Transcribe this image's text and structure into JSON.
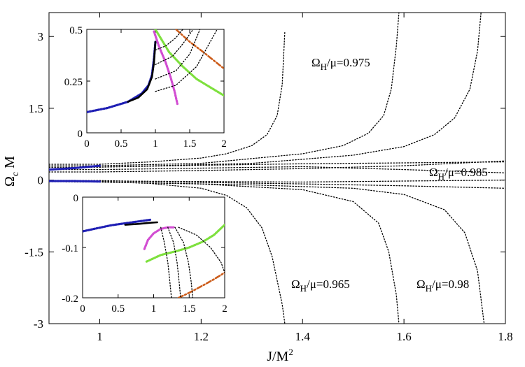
{
  "chart_data": [
    {
      "type": "line",
      "panel": "main",
      "xlabel": "J/M²",
      "ylabel": "Ωc M",
      "xlim": [
        0.9,
        1.8
      ],
      "ylim": [
        -3,
        3.5
      ],
      "xticks": [
        1,
        1.2,
        1.4,
        1.6,
        1.8
      ],
      "yticks": [
        3,
        1.5,
        0,
        -1.5,
        -3
      ],
      "ytick_labels": [
        "3",
        "1.5",
        "0",
        "-1.5",
        "-3"
      ],
      "grid": false,
      "annotations": [
        "ΩH/μ=0.975",
        "ΩH/μ=0.985",
        "ΩH/μ=0.965",
        "ΩH/μ=0.98"
      ],
      "series": [
        {
          "style": "dotted",
          "color": "#000000",
          "x": [
            0.9,
            1.0,
            1.1,
            1.2,
            1.25,
            1.3,
            1.33,
            1.35,
            1.36,
            1.365
          ],
          "y": [
            0.33,
            0.33,
            0.38,
            0.46,
            0.55,
            0.72,
            0.95,
            1.35,
            2.0,
            3.1
          ]
        },
        {
          "style": "dotted",
          "color": "#000000",
          "x": [
            0.9,
            1.0,
            1.2,
            1.4,
            1.48,
            1.53,
            1.56,
            1.575,
            1.585,
            1.59
          ],
          "y": [
            0.3,
            0.3,
            0.35,
            0.55,
            0.72,
            0.98,
            1.35,
            1.9,
            2.8,
            3.5
          ]
        },
        {
          "style": "dotted",
          "color": "#000000",
          "x": [
            0.9,
            1.0,
            1.3,
            1.5,
            1.6,
            1.66,
            1.7,
            1.73,
            1.745,
            1.752
          ],
          "y": [
            0.27,
            0.27,
            0.35,
            0.52,
            0.7,
            0.95,
            1.3,
            1.9,
            2.7,
            3.5
          ]
        },
        {
          "style": "dotted",
          "color": "#000000",
          "x": [
            0.9,
            1.0,
            1.2,
            1.4,
            1.6,
            1.8
          ],
          "y": [
            0.17,
            0.17,
            0.2,
            0.24,
            0.3,
            0.4
          ]
        },
        {
          "style": "dotted",
          "color": "#000000",
          "x": [
            0.9,
            1.0,
            1.2,
            1.4,
            1.6,
            1.8
          ],
          "y": [
            0.22,
            0.22,
            0.25,
            0.28,
            0.22,
            0.15
          ]
        },
        {
          "style": "dotted",
          "color": "#000000",
          "x": [
            0.9,
            1.0,
            1.2,
            1.4,
            1.6,
            1.8
          ],
          "y": [
            0.27,
            0.27,
            0.31,
            0.34,
            0.36,
            0.38
          ]
        },
        {
          "style": "dotted",
          "color": "#000000",
          "x": [
            0.9,
            1.0,
            1.1,
            1.2,
            1.25,
            1.29,
            1.32,
            1.34,
            1.36,
            1.365
          ],
          "y": [
            -0.02,
            -0.03,
            -0.07,
            -0.17,
            -0.32,
            -0.58,
            -1.0,
            -1.6,
            -2.6,
            -3.0
          ]
        },
        {
          "style": "dotted",
          "color": "#000000",
          "x": [
            0.9,
            1.0,
            1.2,
            1.4,
            1.5,
            1.55,
            1.57,
            1.585,
            1.59
          ],
          "y": [
            -0.03,
            -0.04,
            -0.08,
            -0.2,
            -0.45,
            -0.9,
            -1.5,
            -2.4,
            -3.0
          ]
        },
        {
          "style": "dotted",
          "color": "#000000",
          "x": [
            0.9,
            1.0,
            1.3,
            1.5,
            1.6,
            1.68,
            1.72,
            1.745,
            1.758
          ],
          "y": [
            -0.03,
            -0.04,
            -0.1,
            -0.17,
            -0.3,
            -0.62,
            -1.1,
            -1.9,
            -3.0
          ]
        },
        {
          "style": "dotted",
          "color": "#000000",
          "x": [
            0.9,
            1.0,
            1.2,
            1.4,
            1.6,
            1.8
          ],
          "y": [
            -0.01,
            -0.01,
            -0.05,
            -0.08,
            -0.12,
            -0.17
          ]
        },
        {
          "style": "dotted",
          "color": "#000000",
          "x": [
            0.9,
            1.0,
            1.2,
            1.4,
            1.6,
            1.8
          ],
          "y": [
            -0.02,
            -0.02,
            -0.03,
            -0.04,
            -0.02,
            0.0
          ]
        },
        {
          "style": "thick-dotted",
          "color": "#1f1fb4",
          "x": [
            0.9,
            0.95,
            1.0
          ],
          "y": [
            0.22,
            0.25,
            0.3
          ]
        },
        {
          "style": "thick-dotted",
          "color": "#1f1fb4",
          "x": [
            0.9,
            0.95,
            1.0
          ],
          "y": [
            -0.02,
            -0.02,
            -0.03
          ]
        }
      ]
    },
    {
      "type": "line",
      "panel": "inset-top",
      "xlim": [
        0,
        2
      ],
      "ylim": [
        0,
        0.5
      ],
      "xticks": [
        0,
        0.5,
        1,
        1.5,
        2
      ],
      "yticks": [
        0,
        0.25,
        0.5
      ],
      "ytick_labels": [
        "0",
        "0.25",
        "0.5"
      ],
      "series": [
        {
          "style": "thick-dotted",
          "color": "#1f1fb4",
          "x": [
            0,
            0.3,
            0.6,
            0.8,
            0.9,
            0.95,
            0.98,
            1.0
          ],
          "y": [
            0.1,
            0.12,
            0.15,
            0.19,
            0.23,
            0.28,
            0.36,
            0.44
          ]
        },
        {
          "style": "solid",
          "color": "#000000",
          "x": [
            0.6,
            0.75,
            0.88,
            0.95,
            0.98,
            1.0
          ],
          "y": [
            0.15,
            0.17,
            0.21,
            0.27,
            0.34,
            0.44
          ]
        },
        {
          "style": "thick-dotted",
          "color": "#d24dd2",
          "x": [
            0.98,
            1.05,
            1.15,
            1.22,
            1.28,
            1.32
          ],
          "y": [
            0.49,
            0.42,
            0.34,
            0.27,
            0.2,
            0.14
          ]
        },
        {
          "style": "thick-dotted",
          "color": "#7ee03e",
          "x": [
            1.0,
            1.2,
            1.4,
            1.6,
            1.8,
            2.0
          ],
          "y": [
            0.5,
            0.39,
            0.32,
            0.26,
            0.22,
            0.18
          ]
        },
        {
          "style": "dash-dot",
          "color": "#cc5c1a",
          "x": [
            1.3,
            1.5,
            1.7,
            1.85,
            2.0
          ],
          "y": [
            0.5,
            0.44,
            0.39,
            0.35,
            0.31
          ]
        },
        {
          "style": "dotted",
          "color": "#000000",
          "x": [
            1.0,
            1.3,
            1.6,
            1.9
          ],
          "y": [
            0.2,
            0.23,
            0.32,
            0.5
          ]
        },
        {
          "style": "dotted",
          "color": "#000000",
          "x": [
            1.0,
            1.3,
            1.5,
            1.65
          ],
          "y": [
            0.26,
            0.3,
            0.38,
            0.5
          ]
        },
        {
          "style": "dotted",
          "color": "#000000",
          "x": [
            1.0,
            1.25,
            1.4,
            1.55
          ],
          "y": [
            0.33,
            0.37,
            0.43,
            0.5
          ]
        },
        {
          "style": "dotted",
          "color": "#000000",
          "x": [
            1.0,
            1.15,
            1.3,
            1.4
          ],
          "y": [
            0.4,
            0.42,
            0.46,
            0.5
          ]
        }
      ]
    },
    {
      "type": "line",
      "panel": "inset-bottom",
      "xlim": [
        0,
        2
      ],
      "ylim": [
        -0.2,
        0
      ],
      "xticks": [
        0,
        0.5,
        1,
        1.5,
        2
      ],
      "yticks": [
        0,
        -0.1,
        -0.2
      ],
      "ytick_labels": [
        "0",
        "-0.1",
        "-0.2"
      ],
      "series": [
        {
          "style": "thick-dotted",
          "color": "#1f1fb4",
          "x": [
            0,
            0.2,
            0.4,
            0.6,
            0.8,
            0.95
          ],
          "y": [
            -0.068,
            -0.062,
            -0.056,
            -0.052,
            -0.048,
            -0.045
          ]
        },
        {
          "style": "solid",
          "color": "#000000",
          "x": [
            0.6,
            0.8,
            0.95,
            1.05
          ],
          "y": [
            -0.055,
            -0.053,
            -0.051,
            -0.05
          ]
        },
        {
          "style": "thick-dotted",
          "color": "#d24dd2",
          "x": [
            0.87,
            0.92,
            1.0,
            1.1,
            1.2,
            1.28
          ],
          "y": [
            -0.103,
            -0.085,
            -0.072,
            -0.063,
            -0.06,
            -0.06
          ]
        },
        {
          "style": "thick-dotted",
          "color": "#7ee03e",
          "x": [
            0.9,
            1.1,
            1.3,
            1.5,
            1.7,
            1.85,
            2.0
          ],
          "y": [
            -0.128,
            -0.115,
            -0.108,
            -0.1,
            -0.088,
            -0.075,
            -0.055
          ]
        },
        {
          "style": "dash-dot",
          "color": "#cc5c1a",
          "x": [
            1.35,
            1.5,
            1.7,
            1.85,
            2.0
          ],
          "y": [
            -0.2,
            -0.19,
            -0.175,
            -0.163,
            -0.15
          ]
        },
        {
          "style": "dotted",
          "color": "#000000",
          "x": [
            1.1,
            1.15,
            1.2,
            1.23,
            1.25
          ],
          "y": [
            -0.06,
            -0.09,
            -0.13,
            -0.17,
            -0.2
          ]
        },
        {
          "style": "dotted",
          "color": "#000000",
          "x": [
            1.2,
            1.28,
            1.33,
            1.36,
            1.38
          ],
          "y": [
            -0.06,
            -0.09,
            -0.13,
            -0.17,
            -0.2
          ]
        },
        {
          "style": "dotted",
          "color": "#000000",
          "x": [
            1.3,
            1.42,
            1.49,
            1.53,
            1.55
          ],
          "y": [
            -0.06,
            -0.09,
            -0.13,
            -0.17,
            -0.2
          ]
        },
        {
          "style": "dotted",
          "color": "#000000",
          "x": [
            1.35,
            1.6,
            1.8,
            1.95,
            2.0
          ],
          "y": [
            -0.06,
            -0.075,
            -0.1,
            -0.13,
            -0.15
          ]
        }
      ]
    }
  ]
}
